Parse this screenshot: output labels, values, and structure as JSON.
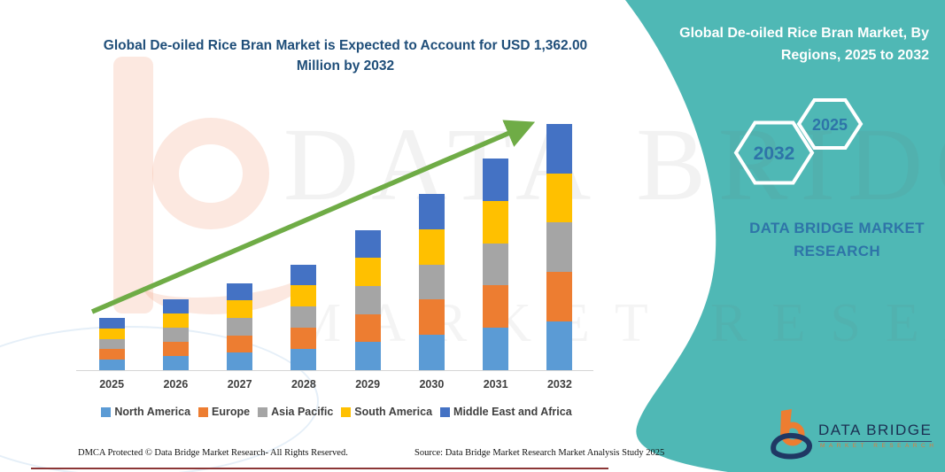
{
  "chart": {
    "title": "Global De-oiled Rice Bran Market is Expected to Account for USD 1,362.00 Million by 2032"
  },
  "chart_data": {
    "type": "bar",
    "stacked": true,
    "title": "Global De-oiled Rice Bran Market is Expected to Account for USD 1,362.00 Million by 2032",
    "unit": "USD Million",
    "categories": [
      "2025",
      "2026",
      "2027",
      "2028",
      "2029",
      "2030",
      "2031",
      "2032"
    ],
    "series": [
      {
        "name": "North America",
        "color": "#5B9BD5",
        "values": [
          58,
          79,
          96,
          117,
          155,
          195,
          234,
          272
        ]
      },
      {
        "name": "Europe",
        "color": "#ED7D31",
        "values": [
          58,
          79,
          96,
          117,
          155,
          195,
          234,
          272
        ]
      },
      {
        "name": "Asia Pacific",
        "color": "#A5A5A5",
        "values": [
          58,
          79,
          97,
          117,
          156,
          195,
          234,
          273
        ]
      },
      {
        "name": "South America",
        "color": "#FFC000",
        "values": [
          58,
          78,
          96,
          117,
          155,
          194,
          234,
          272
        ]
      },
      {
        "name": "Middle East and Africa",
        "color": "#4472C4",
        "values": [
          58,
          78,
          97,
          117,
          156,
          194,
          234,
          273
        ]
      }
    ],
    "totals": [
      290,
      393,
      482,
      585,
      777,
      973,
      1170,
      1362
    ],
    "annotations": [
      "upward green trend arrow from 2025 to 2032"
    ],
    "legend_position": "bottom",
    "grid": false,
    "accent_colors": {
      "trend_arrow": "#6FAC46",
      "axis_line": "#d6d6d6",
      "panel_teal": "#4FB8B5",
      "title_blue": "#1F4E79"
    }
  },
  "right_panel": {
    "title": "Global De-oiled Rice Bran Market, By Regions, 2025 to 2032",
    "hexagon_back_label": "2032",
    "hexagon_front_label": "2025",
    "brand": "DATA BRIDGE MARKET RESEARCH"
  },
  "watermark": {
    "line1": "DATA BRIDGE",
    "line2": "MARKET RESEARCH"
  },
  "logo": {
    "name": "DATA BRIDGE",
    "sub": "MARKET RESEARCH"
  },
  "footer": {
    "left": "DMCA Protected © Data Bridge Market Research-  All Rights Reserved.",
    "right": "Source: Data Bridge Market Research  Market Analysis Study 2025"
  }
}
